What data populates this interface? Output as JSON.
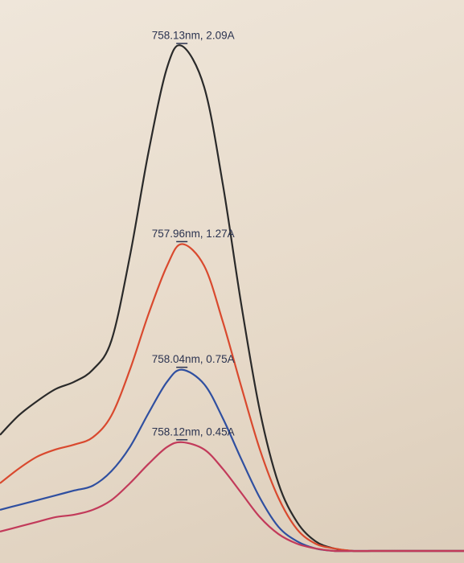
{
  "chart_data": {
    "type": "line",
    "x": [
      660,
      670,
      680,
      690,
      700,
      710,
      720,
      730,
      740,
      750,
      758,
      770,
      780,
      790,
      800,
      810,
      820,
      830,
      840,
      850,
      860,
      870,
      880,
      890,
      900,
      910
    ],
    "xlim": [
      660,
      910
    ],
    "ylim": [
      -0.05,
      2.28
    ],
    "series": [
      {
        "color": "#2a2a2a",
        "values": [
          0.48,
          0.56,
          0.62,
          0.67,
          0.7,
          0.75,
          0.87,
          1.22,
          1.65,
          2.0,
          2.09,
          1.92,
          1.52,
          1.02,
          0.58,
          0.28,
          0.12,
          0.04,
          0.01,
          0,
          0,
          0,
          0,
          0,
          0,
          0
        ]
      },
      {
        "color": "#d9492e",
        "values": [
          0.28,
          0.34,
          0.39,
          0.42,
          0.44,
          0.47,
          0.56,
          0.75,
          0.98,
          1.18,
          1.27,
          1.18,
          0.95,
          0.68,
          0.42,
          0.22,
          0.09,
          0.03,
          0.01,
          0,
          0,
          0,
          0,
          0,
          0,
          0
        ]
      },
      {
        "color": "#2f4fa0",
        "values": [
          0.17,
          0.19,
          0.21,
          0.23,
          0.25,
          0.27,
          0.33,
          0.43,
          0.57,
          0.7,
          0.75,
          0.69,
          0.55,
          0.38,
          0.22,
          0.1,
          0.04,
          0.01,
          0,
          0,
          0,
          0,
          0,
          0,
          0,
          0
        ]
      },
      {
        "color": "#c23a5a",
        "values": [
          0.08,
          0.1,
          0.12,
          0.14,
          0.15,
          0.17,
          0.21,
          0.28,
          0.36,
          0.43,
          0.45,
          0.42,
          0.34,
          0.24,
          0.14,
          0.07,
          0.03,
          0.01,
          0,
          0,
          0,
          0,
          0,
          0,
          0,
          0
        ]
      }
    ],
    "annotations": [
      "758.13nm, 2.09A",
      "757.96nm, 1.27A",
      "758.04nm, 0.75A",
      "758.12nm, 0.45A"
    ]
  }
}
